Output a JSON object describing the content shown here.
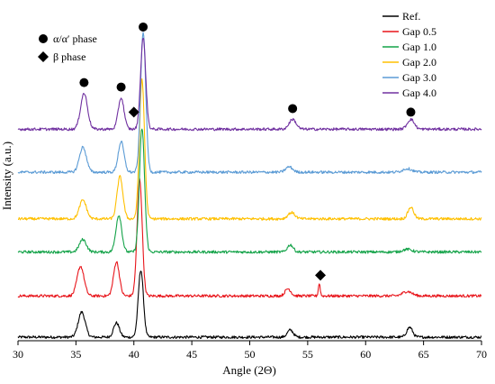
{
  "chart_data": {
    "type": "line",
    "xlabel": "Angle (2Θ)",
    "ylabel": "Intensity (a.u.)",
    "xlim": [
      30,
      70
    ],
    "x_ticks": [
      "30",
      "35",
      "40",
      "45",
      "50",
      "55",
      "60",
      "65",
      "70"
    ],
    "grid": false,
    "legend_position": "top-right",
    "phase_legend": [
      {
        "symbol": "circle",
        "label": "α/α′ phase"
      },
      {
        "symbol": "diamond",
        "label": "β phase"
      }
    ],
    "noise_amplitude": 1.5,
    "series": [
      {
        "name": "Ref.",
        "color": "#000000",
        "baseline": 4,
        "peaks": [
          {
            "x": 35.5,
            "h": 28,
            "w": 0.3
          },
          {
            "x": 38.5,
            "h": 16,
            "w": 0.25
          },
          {
            "x": 40.6,
            "h": 75,
            "w": 0.22
          },
          {
            "x": 53.5,
            "h": 8,
            "w": 0.25
          },
          {
            "x": 63.8,
            "h": 11,
            "w": 0.25
          }
        ]
      },
      {
        "name": "Gap 0.5",
        "color": "#e8141a",
        "baseline": 50,
        "peaks": [
          {
            "x": 35.4,
            "h": 33,
            "w": 0.3
          },
          {
            "x": 38.5,
            "h": 38,
            "w": 0.25
          },
          {
            "x": 40.5,
            "h": 130,
            "w": 0.22
          },
          {
            "x": 53.3,
            "h": 8,
            "w": 0.25
          },
          {
            "x": 56.0,
            "h": 14,
            "w": 0.08
          },
          {
            "x": 63.6,
            "h": 5,
            "w": 0.4
          }
        ]
      },
      {
        "name": "Gap 1.0",
        "color": "#14a349",
        "baseline": 99,
        "peaks": [
          {
            "x": 35.6,
            "h": 14,
            "w": 0.3
          },
          {
            "x": 38.7,
            "h": 41,
            "w": 0.25
          },
          {
            "x": 40.7,
            "h": 138,
            "w": 0.22
          },
          {
            "x": 53.5,
            "h": 8,
            "w": 0.25
          },
          {
            "x": 63.6,
            "h": 3,
            "w": 0.4
          }
        ]
      },
      {
        "name": "Gap 2.0",
        "color": "#ffc000",
        "baseline": 136,
        "peaks": [
          {
            "x": 35.6,
            "h": 21,
            "w": 0.3
          },
          {
            "x": 38.8,
            "h": 47,
            "w": 0.25
          },
          {
            "x": 40.7,
            "h": 155,
            "w": 0.22
          },
          {
            "x": 53.6,
            "h": 7,
            "w": 0.3
          },
          {
            "x": 63.9,
            "h": 13,
            "w": 0.25
          }
        ]
      },
      {
        "name": "Gap 3.0",
        "color": "#5b9bd5",
        "baseline": 188,
        "peaks": [
          {
            "x": 35.6,
            "h": 28,
            "w": 0.3
          },
          {
            "x": 38.9,
            "h": 34,
            "w": 0.25
          },
          {
            "x": 40.8,
            "h": 157,
            "w": 0.22
          },
          {
            "x": 53.4,
            "h": 6,
            "w": 0.3
          },
          {
            "x": 63.6,
            "h": 4,
            "w": 0.4
          }
        ]
      },
      {
        "name": "Gap 4.0",
        "color": "#7030a0",
        "baseline": 236,
        "peaks": [
          {
            "x": 35.7,
            "h": 40,
            "w": 0.3
          },
          {
            "x": 38.9,
            "h": 35,
            "w": 0.25
          },
          {
            "x": 40.8,
            "h": 102,
            "w": 0.22
          },
          {
            "x": 53.7,
            "h": 11,
            "w": 0.3
          },
          {
            "x": 63.9,
            "h": 11,
            "w": 0.3
          }
        ]
      }
    ],
    "annotations": [
      {
        "symbol": "circle",
        "x": 35.7,
        "y": 288
      },
      {
        "symbol": "circle",
        "x": 38.9,
        "y": 283
      },
      {
        "symbol": "circle",
        "x": 40.8,
        "y": 350
      },
      {
        "symbol": "circle",
        "x": 53.7,
        "y": 259
      },
      {
        "symbol": "circle",
        "x": 63.9,
        "y": 255
      },
      {
        "symbol": "diamond",
        "x": 40.0,
        "y": 255
      },
      {
        "symbol": "diamond",
        "x": 56.1,
        "y": 73
      }
    ]
  }
}
